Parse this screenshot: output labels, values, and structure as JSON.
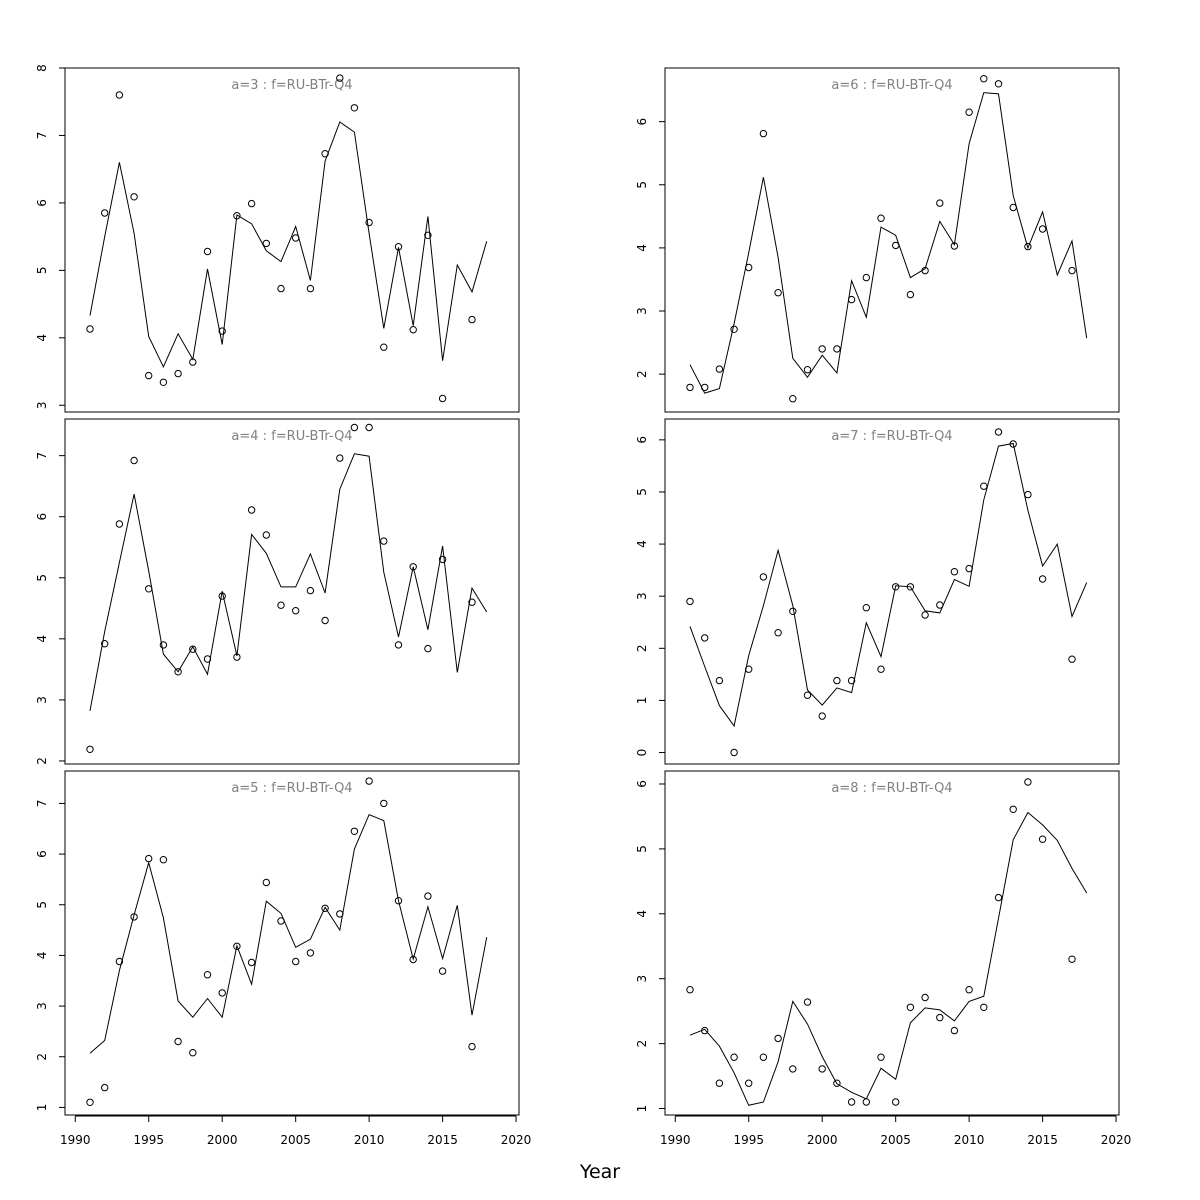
{
  "chart_data": {
    "type": "line",
    "xlabel": "Year",
    "x_ticks": [
      1990,
      1995,
      2000,
      2005,
      2010,
      2015,
      2020
    ],
    "xlim": [
      1989.3,
      2020.2
    ],
    "fit_years": [
      1991,
      1992,
      1993,
      1994,
      1995,
      1996,
      1997,
      1998,
      1999,
      2000,
      2001,
      2002,
      2003,
      2004,
      2005,
      2006,
      2007,
      2008,
      2009,
      2010,
      2011,
      2012,
      2013,
      2014,
      2015,
      2016,
      2017,
      2018
    ],
    "panels": [
      {
        "title": "a=3  :  f=RU-BTr-Q4",
        "ylim": [
          2.9,
          8.0
        ],
        "y_ticks": [
          3,
          4,
          5,
          6,
          7,
          8
        ],
        "fitted": [
          4.33,
          5.5,
          6.6,
          5.55,
          4.02,
          3.57,
          4.06,
          3.68,
          5.02,
          3.9,
          5.82,
          5.69,
          5.29,
          5.13,
          5.65,
          4.85,
          6.62,
          7.2,
          7.05,
          5.55,
          4.14,
          5.34,
          4.18,
          5.8,
          3.66,
          5.08,
          4.68,
          5.43
        ],
        "observed": [
          [
            1991,
            4.13
          ],
          [
            1992,
            5.85
          ],
          [
            1993,
            7.6
          ],
          [
            1994,
            6.09
          ],
          [
            1995,
            3.44
          ],
          [
            1996,
            3.34
          ],
          [
            1997,
            3.47
          ],
          [
            1998,
            3.64
          ],
          [
            1999,
            5.28
          ],
          [
            2000,
            4.1
          ],
          [
            2001,
            5.81
          ],
          [
            2002,
            5.99
          ],
          [
            2003,
            5.4
          ],
          [
            2004,
            4.73
          ],
          [
            2005,
            5.48
          ],
          [
            2006,
            4.73
          ],
          [
            2007,
            6.73
          ],
          [
            2008,
            7.85
          ],
          [
            2009,
            7.41
          ],
          [
            2010,
            5.71
          ],
          [
            2011,
            3.86
          ],
          [
            2012,
            5.35
          ],
          [
            2013,
            4.12
          ],
          [
            2014,
            5.52
          ],
          [
            2015,
            3.1
          ],
          [
            2017,
            4.27
          ]
        ]
      },
      {
        "title": "a=6  :  f=RU-BTr-Q4",
        "ylim": [
          1.4,
          6.85
        ],
        "y_ticks": [
          2,
          3,
          4,
          5,
          6
        ],
        "fitted": [
          2.15,
          1.7,
          1.77,
          2.8,
          3.92,
          5.12,
          3.85,
          2.25,
          1.95,
          2.3,
          2.02,
          3.48,
          2.9,
          4.33,
          4.2,
          3.53,
          3.67,
          4.42,
          4.05,
          5.65,
          6.46,
          6.44,
          4.83,
          4.0,
          4.57,
          3.57,
          4.11,
          2.57
        ],
        "observed": [
          [
            1991,
            1.79
          ],
          [
            1992,
            1.79
          ],
          [
            1993,
            2.08
          ],
          [
            1994,
            2.71
          ],
          [
            1995,
            3.69
          ],
          [
            1996,
            5.81
          ],
          [
            1997,
            3.29
          ],
          [
            1998,
            1.61
          ],
          [
            1999,
            2.07
          ],
          [
            2000,
            2.4
          ],
          [
            2001,
            2.4
          ],
          [
            2002,
            3.18
          ],
          [
            2003,
            3.53
          ],
          [
            2004,
            4.47
          ],
          [
            2005,
            4.04
          ],
          [
            2006,
            3.26
          ],
          [
            2007,
            3.64
          ],
          [
            2008,
            4.71
          ],
          [
            2009,
            4.03
          ],
          [
            2010,
            6.15
          ],
          [
            2011,
            6.68
          ],
          [
            2012,
            6.6
          ],
          [
            2013,
            4.64
          ],
          [
            2014,
            4.02
          ],
          [
            2015,
            4.3
          ],
          [
            2017,
            3.64
          ]
        ]
      },
      {
        "title": "a=4  :  f=RU-BTr-Q4",
        "ylim": [
          1.95,
          7.6
        ],
        "y_ticks": [
          2,
          3,
          4,
          5,
          6,
          7
        ],
        "fitted": [
          2.82,
          4.12,
          5.25,
          6.37,
          5.11,
          3.75,
          3.46,
          3.87,
          3.42,
          4.78,
          3.72,
          5.71,
          5.4,
          4.85,
          4.85,
          5.39,
          4.75,
          6.45,
          7.03,
          6.99,
          5.09,
          4.03,
          5.18,
          4.15,
          5.52,
          3.45,
          4.83,
          4.44
        ],
        "observed": [
          [
            1991,
            2.19
          ],
          [
            1992,
            3.92
          ],
          [
            1993,
            5.88
          ],
          [
            1994,
            6.92
          ],
          [
            1995,
            4.82
          ],
          [
            1996,
            3.9
          ],
          [
            1997,
            3.46
          ],
          [
            1998,
            3.83
          ],
          [
            1999,
            3.67
          ],
          [
            2000,
            4.7
          ],
          [
            2001,
            3.7
          ],
          [
            2002,
            6.11
          ],
          [
            2003,
            5.7
          ],
          [
            2004,
            4.55
          ],
          [
            2005,
            4.46
          ],
          [
            2006,
            4.79
          ],
          [
            2007,
            4.3
          ],
          [
            2008,
            6.96
          ],
          [
            2009,
            7.46
          ],
          [
            2010,
            7.46
          ],
          [
            2011,
            5.6
          ],
          [
            2012,
            3.9
          ],
          [
            2013,
            5.18
          ],
          [
            2014,
            3.84
          ],
          [
            2015,
            5.3
          ],
          [
            2017,
            4.6
          ]
        ]
      },
      {
        "title": "a=7  :  f=RU-BTr-Q4",
        "ylim": [
          -0.22,
          6.4
        ],
        "y_ticks": [
          0,
          1,
          2,
          3,
          4,
          5,
          6
        ],
        "fitted": [
          2.42,
          1.65,
          0.9,
          0.51,
          1.86,
          2.82,
          3.88,
          2.82,
          1.2,
          0.91,
          1.24,
          1.15,
          2.49,
          1.84,
          3.2,
          3.18,
          2.72,
          2.68,
          3.32,
          3.19,
          4.85,
          5.88,
          5.93,
          4.65,
          3.58,
          4.0,
          2.61,
          3.26
        ],
        "observed": [
          [
            1991,
            2.9
          ],
          [
            1992,
            2.2
          ],
          [
            1993,
            1.38
          ],
          [
            1994,
            0.0
          ],
          [
            1995,
            1.6
          ],
          [
            1996,
            3.37
          ],
          [
            1997,
            2.3
          ],
          [
            1998,
            2.71
          ],
          [
            1999,
            1.1
          ],
          [
            2000,
            0.7
          ],
          [
            2001,
            1.38
          ],
          [
            2002,
            1.38
          ],
          [
            2003,
            2.78
          ],
          [
            2004,
            1.6
          ],
          [
            2005,
            3.18
          ],
          [
            2006,
            3.18
          ],
          [
            2007,
            2.64
          ],
          [
            2008,
            2.83
          ],
          [
            2009,
            3.47
          ],
          [
            2010,
            3.53
          ],
          [
            2011,
            5.11
          ],
          [
            2012,
            6.15
          ],
          [
            2013,
            5.92
          ],
          [
            2014,
            4.95
          ],
          [
            2015,
            3.33
          ],
          [
            2017,
            1.79
          ]
        ]
      },
      {
        "title": "a=5  :  f=RU-BTr-Q4",
        "ylim": [
          0.85,
          7.64
        ],
        "y_ticks": [
          1,
          2,
          3,
          4,
          5,
          6,
          7
        ],
        "fitted": [
          2.07,
          2.32,
          3.7,
          4.8,
          5.83,
          4.74,
          3.1,
          2.78,
          3.15,
          2.78,
          4.19,
          3.43,
          5.07,
          4.83,
          4.16,
          4.32,
          4.95,
          4.5,
          6.1,
          6.78,
          6.66,
          5.08,
          3.93,
          4.96,
          3.94,
          4.99,
          2.82,
          4.36
        ],
        "observed": [
          [
            1991,
            1.1
          ],
          [
            1992,
            1.39
          ],
          [
            1993,
            3.88
          ],
          [
            1994,
            4.76
          ],
          [
            1995,
            5.91
          ],
          [
            1996,
            5.89
          ],
          [
            1997,
            2.3
          ],
          [
            1998,
            2.08
          ],
          [
            1999,
            3.62
          ],
          [
            2000,
            3.26
          ],
          [
            2001,
            4.18
          ],
          [
            2002,
            3.86
          ],
          [
            2003,
            5.44
          ],
          [
            2004,
            4.68
          ],
          [
            2005,
            3.88
          ],
          [
            2006,
            4.05
          ],
          [
            2007,
            4.93
          ],
          [
            2008,
            4.82
          ],
          [
            2009,
            6.45
          ],
          [
            2010,
            7.44
          ],
          [
            2011,
            7.0
          ],
          [
            2012,
            5.08
          ],
          [
            2013,
            3.92
          ],
          [
            2014,
            5.17
          ],
          [
            2015,
            3.69
          ],
          [
            2017,
            2.2
          ]
        ]
      },
      {
        "title": "a=8  :  f=RU-BTr-Q4",
        "ylim": [
          0.9,
          6.2
        ],
        "y_ticks": [
          1,
          2,
          3,
          4,
          5,
          6
        ],
        "fitted": [
          2.13,
          2.22,
          1.96,
          1.55,
          1.05,
          1.1,
          1.72,
          2.65,
          2.3,
          1.8,
          1.38,
          1.25,
          1.15,
          1.62,
          1.45,
          2.32,
          2.55,
          2.52,
          2.35,
          2.65,
          2.73,
          3.93,
          5.14,
          5.56,
          5.37,
          5.13,
          4.7,
          4.32
        ],
        "observed": [
          [
            1991,
            2.83
          ],
          [
            1992,
            2.2
          ],
          [
            1993,
            1.39
          ],
          [
            1994,
            1.79
          ],
          [
            1995,
            1.39
          ],
          [
            1996,
            1.79
          ],
          [
            1997,
            2.08
          ],
          [
            1998,
            1.61
          ],
          [
            1999,
            2.64
          ],
          [
            2000,
            1.61
          ],
          [
            2001,
            1.39
          ],
          [
            2002,
            1.1
          ],
          [
            2003,
            1.1
          ],
          [
            2004,
            1.79
          ],
          [
            2005,
            1.1
          ],
          [
            2006,
            2.56
          ],
          [
            2007,
            2.71
          ],
          [
            2008,
            2.4
          ],
          [
            2009,
            2.2
          ],
          [
            2010,
            2.83
          ],
          [
            2011,
            2.56
          ],
          [
            2012,
            4.25
          ],
          [
            2013,
            5.61
          ],
          [
            2014,
            6.03
          ],
          [
            2015,
            5.15
          ],
          [
            2017,
            3.3
          ]
        ]
      }
    ]
  }
}
